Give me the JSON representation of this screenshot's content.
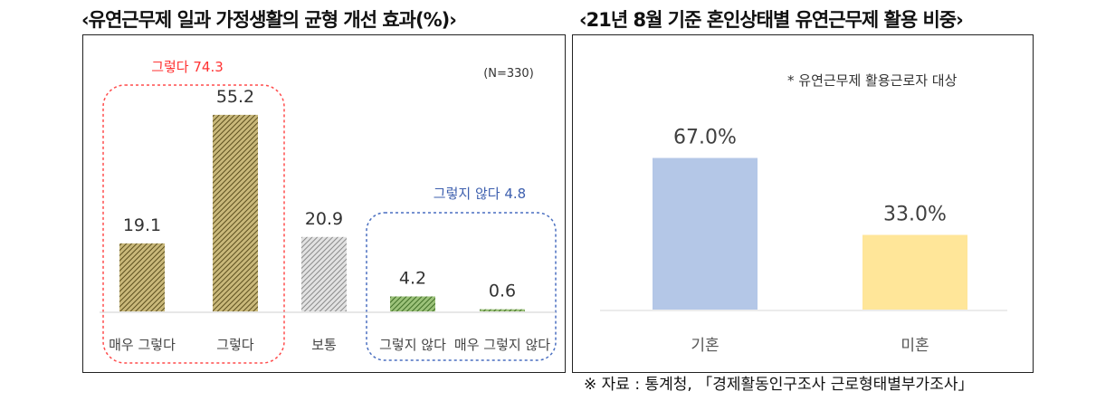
{
  "left_title": "‹유연근무제 일과 가정생활의 균형 개선 효과(%)›",
  "right_title": "‹21년 8월 기준 혼인상태별 유연근무제 활용 비중›",
  "source": "※ 자료 : 통계청, 「경제활동인구조사 근로형태별부가조사」",
  "chart_data": [
    {
      "type": "bar",
      "categories": [
        "매우 그렇다",
        "그렇다",
        "보통",
        "그렇지 않다",
        "매우 그렇지 않다"
      ],
      "values": [
        19.1,
        55.2,
        20.9,
        4.2,
        0.6
      ],
      "value_labels": [
        "19.1",
        "55.2",
        "20.9",
        "4.2",
        "0.6"
      ],
      "ylim": [
        0,
        60
      ],
      "annotations": {
        "sample": "(N=330)",
        "positive_group": "그렇다 74.3",
        "negative_group": "그렇지 않다 4.8"
      },
      "colors": {
        "positive": "#8b7a3c",
        "neutral": "#b0b0b0",
        "negative": "#5a8a3a",
        "positive_box": "#ff4d4d",
        "negative_box": "#4a6fc0"
      },
      "grid": false
    },
    {
      "type": "bar",
      "categories": [
        "기혼",
        "미혼"
      ],
      "values": [
        67.0,
        33.0
      ],
      "value_labels": [
        "67.0%",
        "33.0%"
      ],
      "ylim": [
        0,
        80
      ],
      "annotations": {
        "note": "* 유연근무제 활용근로자 대상"
      },
      "colors": {
        "married": "#b4c7e7",
        "single": "#ffe699"
      },
      "grid": false
    }
  ]
}
